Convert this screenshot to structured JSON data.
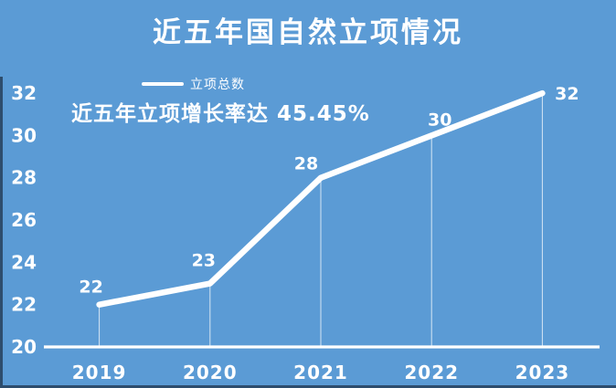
{
  "chart_data": {
    "type": "line",
    "title": "近五年国自然立项情况",
    "annotation": "近五年立项增长率达 45.45%",
    "categories": [
      "2019",
      "2020",
      "2021",
      "2022",
      "2023"
    ],
    "series": [
      {
        "name": "立项总数",
        "values": [
          22,
          23,
          28,
          30,
          32
        ]
      }
    ],
    "data_labels": [
      "22",
      "23",
      "28",
      "30",
      "32"
    ],
    "yticks": [
      20,
      22,
      24,
      26,
      28,
      30,
      32
    ],
    "ylim": [
      20,
      32
    ],
    "xlabel": "",
    "ylabel": "",
    "grid": false,
    "legend_position": "top-left",
    "line_color": "#ffffff",
    "text_color": "#ffffff",
    "background_color": "#5b9bd5",
    "edge_color": "#2e4d6d"
  }
}
